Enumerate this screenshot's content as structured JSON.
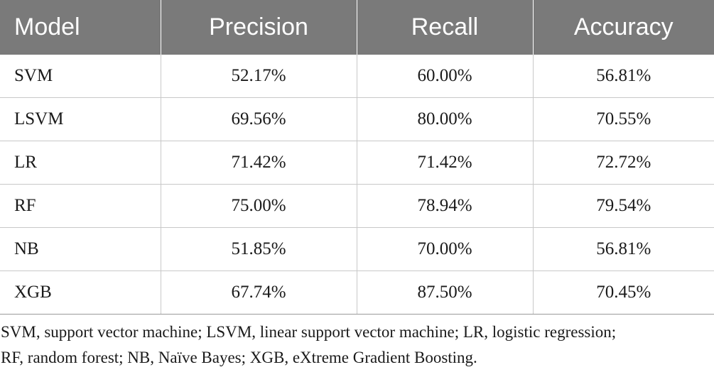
{
  "table": {
    "headers": [
      "Model",
      "Precision",
      "Recall",
      "Accuracy"
    ],
    "rows": [
      {
        "model": "SVM",
        "precision": "52.17%",
        "recall": "60.00%",
        "accuracy": "56.81%"
      },
      {
        "model": "LSVM",
        "precision": "69.56%",
        "recall": "80.00%",
        "accuracy": "70.55%"
      },
      {
        "model": "LR",
        "precision": "71.42%",
        "recall": "71.42%",
        "accuracy": "72.72%"
      },
      {
        "model": "RF",
        "precision": "75.00%",
        "recall": "78.94%",
        "accuracy": "79.54%"
      },
      {
        "model": "NB",
        "precision": "51.85%",
        "recall": "70.00%",
        "accuracy": "56.81%"
      },
      {
        "model": "XGB",
        "precision": "67.74%",
        "recall": "87.50%",
        "accuracy": "70.45%"
      }
    ]
  },
  "footnote": {
    "line1": "SVM, support vector machine; LSVM, linear support vector machine; LR, logistic regression;",
    "line2": "RF, random forest; NB, Naïve Bayes; XGB, eXtreme Gradient Boosting."
  },
  "colors": {
    "header_background": "#7a7a7a",
    "header_text": "#ffffff",
    "body_text": "#1a1a1a",
    "row_divider": "#c8c8c8"
  }
}
